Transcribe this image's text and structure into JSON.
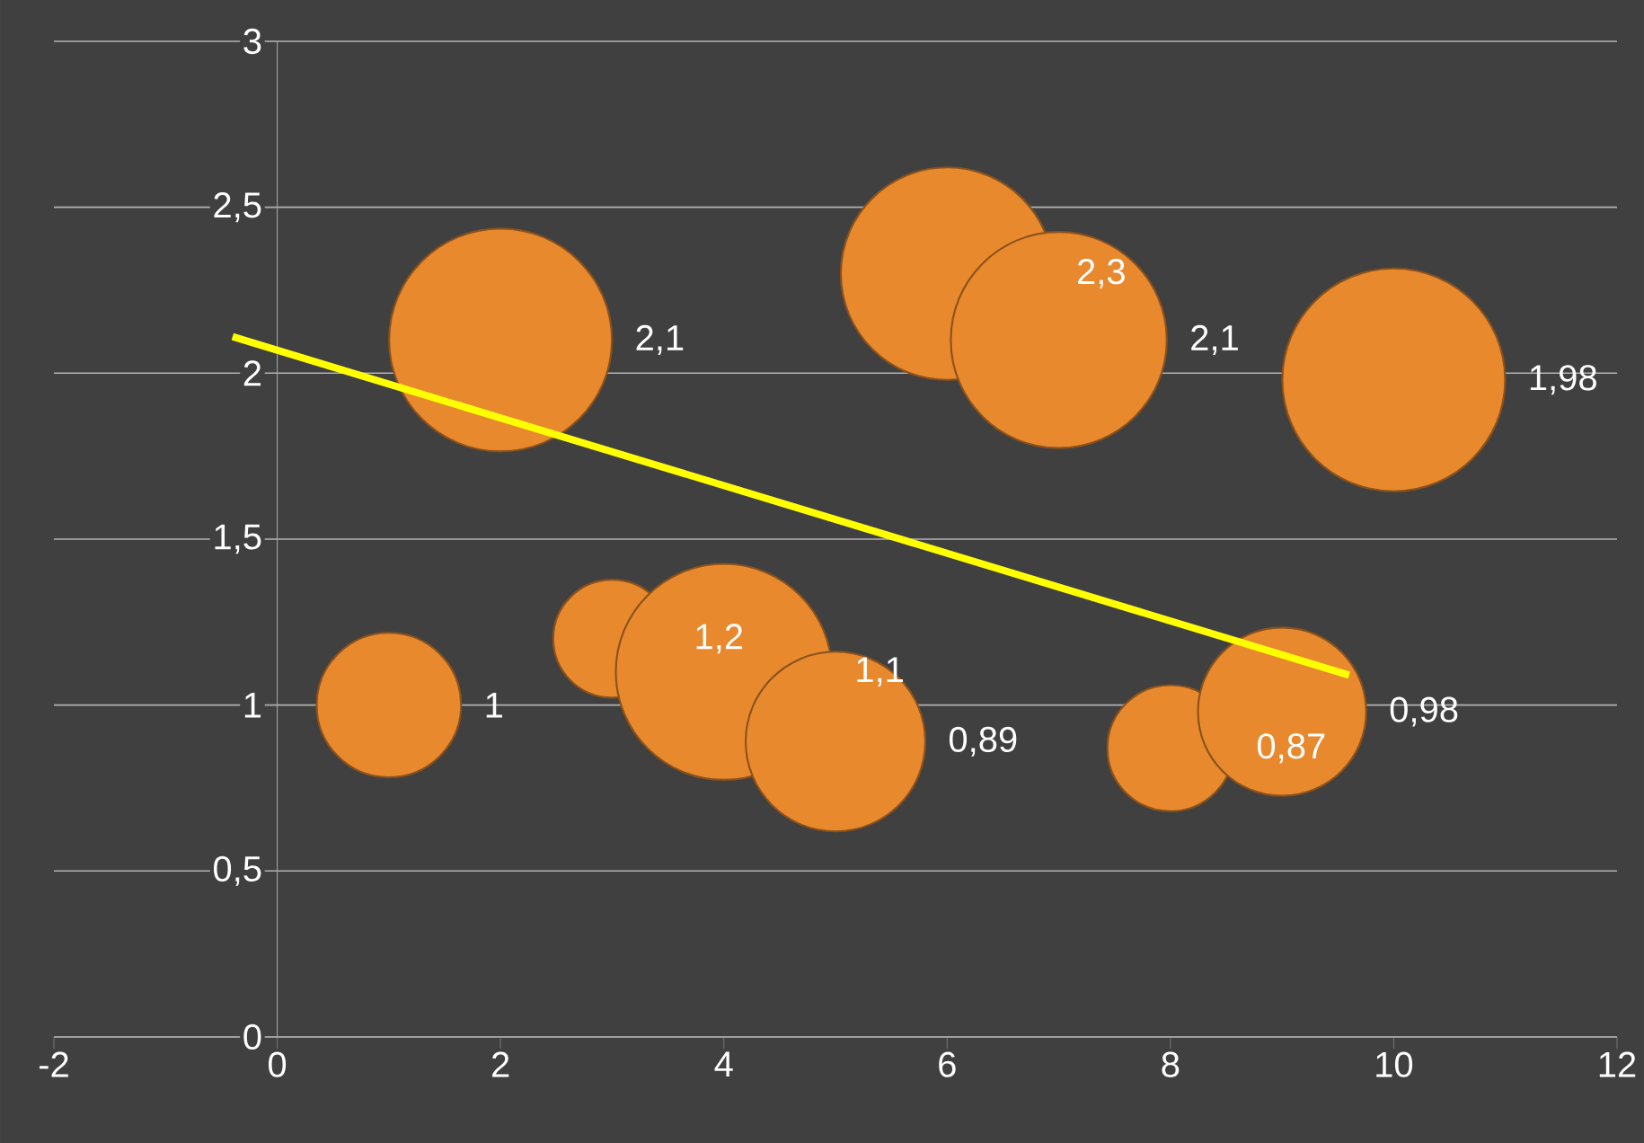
{
  "chart_data": {
    "type": "bubble",
    "xlim": [
      -2,
      12
    ],
    "xticks": [
      -2,
      0,
      2,
      4,
      6,
      8,
      10,
      12
    ],
    "ylim": [
      0,
      3
    ],
    "yticks": [
      {
        "value": 0,
        "label": "0"
      },
      {
        "value": 0.5,
        "label": "0,5"
      },
      {
        "value": 1,
        "label": "1"
      },
      {
        "value": 1.5,
        "label": "1,5"
      },
      {
        "value": 2,
        "label": "2"
      },
      {
        "value": 2.5,
        "label": "2,5"
      },
      {
        "value": 3,
        "label": "3"
      }
    ],
    "grid": "y",
    "series": [
      {
        "x": [
          1,
          2,
          3,
          4,
          5,
          6,
          7,
          8,
          9,
          10
        ],
        "color": "#e8892e",
        "marker": "circle",
        "values": [
          1,
          2.1,
          1.2,
          1.1,
          0.89,
          2.3,
          2.1,
          0.87,
          0.98,
          1.98
        ],
        "sizes": [
          0.42,
          1,
          0.28,
          0.94,
          0.65,
          0.91,
          0.94,
          0.32,
          0.57,
          1
        ],
        "value_labels": [
          "1",
          "2,1",
          "1,2",
          "1,1",
          "0,89",
          "2,3",
          "2,1",
          "0,87",
          "0,98",
          "1,98"
        ]
      },
      {
        "type": "line",
        "x": [
          -0.4,
          9.6
        ],
        "values": [
          2.11,
          1.09
        ],
        "color": "#ffff00",
        "marker": "none",
        "line_style": "solid"
      }
    ]
  }
}
